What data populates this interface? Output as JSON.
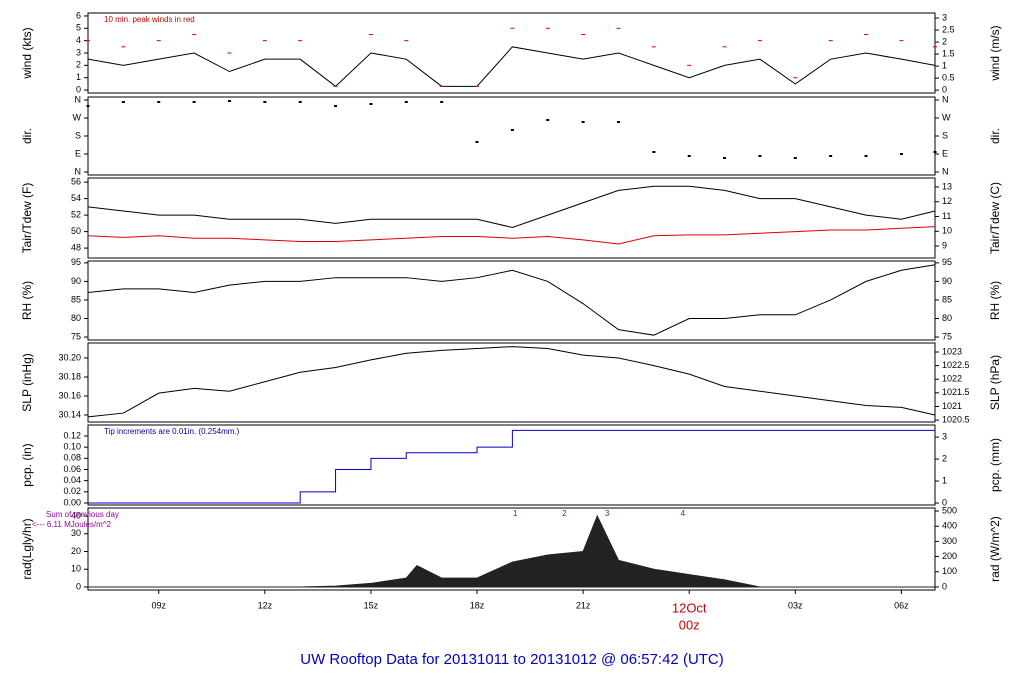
{
  "chart_data": [
    {
      "type": "line",
      "ylabel": "wind (kts)",
      "y2label": "wind (m/s)",
      "note": "10 min. peak winds in red",
      "note_color": "#cc0000",
      "xlim": [
        7,
        30.95
      ],
      "ylim": [
        -0.24,
        6.24
      ],
      "yticks": [
        0,
        1,
        2,
        3,
        4,
        5,
        6
      ],
      "y2lim": [
        -0.12,
        3.21
      ],
      "y2ticks": [
        0,
        0.5,
        1,
        1.5,
        2,
        2.5,
        3
      ],
      "x": [
        7,
        8,
        9,
        10,
        11,
        12,
        13,
        14,
        15,
        16,
        17,
        18,
        19,
        20,
        21,
        22,
        23,
        24,
        25,
        26,
        27,
        28,
        29,
        30,
        30.95
      ],
      "series": [
        {
          "color": "#000000",
          "values": [
            2.5,
            2,
            2.5,
            3,
            1.5,
            2.5,
            2.5,
            0.3,
            3,
            2.5,
            0.3,
            0.3,
            3.5,
            3,
            2.5,
            3,
            2,
            1,
            2,
            2.5,
            0.5,
            2.5,
            3,
            2.5,
            2
          ]
        },
        {
          "color": "#dd0000",
          "marker": "dash",
          "values": [
            4,
            3.5,
            4,
            4.5,
            3,
            4,
            4,
            0.3,
            4.5,
            4,
            0.3,
            0.3,
            5,
            5,
            4.5,
            5,
            3.5,
            2,
            3.5,
            4,
            1,
            4,
            4.5,
            4,
            3.5
          ]
        }
      ]
    },
    {
      "type": "scatter",
      "ylabel": "dir.",
      "y2label": "dir.",
      "xlim": [
        7,
        30.95
      ],
      "ylim": [
        -15,
        375
      ],
      "yticks": [
        {
          "value": 360,
          "label": "N"
        },
        {
          "value": 270,
          "label": "W"
        },
        {
          "value": 180,
          "label": "S"
        },
        {
          "value": 90,
          "label": "E"
        },
        {
          "value": 0,
          "label": "N"
        }
      ],
      "y2lim": [
        -15,
        375
      ],
      "y2ticks": [
        {
          "value": 360,
          "label": "N"
        },
        {
          "value": 270,
          "label": "W"
        },
        {
          "value": 180,
          "label": "S"
        },
        {
          "value": 90,
          "label": "E"
        },
        {
          "value": 0,
          "label": "N"
        }
      ],
      "x": [
        7,
        8,
        9,
        10,
        11,
        12,
        13,
        14,
        15,
        16,
        17,
        18,
        19,
        20,
        21,
        22,
        23,
        24,
        25,
        26,
        27,
        28,
        29,
        30,
        30.95
      ],
      "series": [
        {
          "color": "#000000",
          "values": [
            330,
            350,
            350,
            350,
            355,
            350,
            350,
            330,
            340,
            350,
            350,
            150,
            210,
            260,
            250,
            250,
            100,
            80,
            70,
            80,
            70,
            80,
            80,
            90,
            100
          ]
        }
      ]
    },
    {
      "type": "line",
      "ylabel": "Tair/Tdew (F)",
      "y2label": "Tair/Tdew (C)",
      "xlim": [
        7,
        30.95
      ],
      "ylim": [
        46.8,
        56.5
      ],
      "yticks": [
        48,
        50,
        52,
        54,
        56
      ],
      "y2lim": [
        8.19,
        13.61
      ],
      "y2ticks": [
        9,
        10,
        11,
        12,
        13
      ],
      "x": [
        7,
        8,
        9,
        10,
        11,
        12,
        13,
        14,
        15,
        16,
        17,
        18,
        19,
        20,
        21,
        22,
        23,
        24,
        25,
        26,
        27,
        28,
        29,
        30,
        30.95
      ],
      "series": [
        {
          "color": "#000000",
          "values": [
            53,
            52.5,
            52,
            52,
            51.5,
            51.5,
            51.5,
            51,
            51.5,
            51.5,
            51.5,
            51.5,
            50.5,
            52,
            53.5,
            55,
            55.5,
            55.5,
            55,
            54,
            54,
            53,
            52,
            51.5,
            52.5
          ]
        },
        {
          "color": "#dd0000",
          "values": [
            49.5,
            49.3,
            49.5,
            49.2,
            49.2,
            49,
            48.8,
            48.8,
            49,
            49.2,
            49.4,
            49.4,
            49.2,
            49.4,
            49,
            48.5,
            49.5,
            49.6,
            49.6,
            49.8,
            50,
            50.2,
            50.2,
            50.4,
            50.6
          ]
        }
      ]
    },
    {
      "type": "line",
      "ylabel": "RH (%)",
      "y2label": "RH (%)",
      "xlim": [
        7,
        30.95
      ],
      "ylim": [
        74.2,
        95.5
      ],
      "yticks": [
        75,
        80,
        85,
        90,
        95
      ],
      "y2lim": [
        74.2,
        95.5
      ],
      "y2ticks": [
        75,
        80,
        85,
        90,
        95
      ],
      "x": [
        7,
        8,
        9,
        10,
        11,
        12,
        13,
        14,
        15,
        16,
        17,
        18,
        19,
        20,
        21,
        22,
        23,
        24,
        25,
        26,
        27,
        28,
        29,
        30,
        30.95
      ],
      "series": [
        {
          "color": "#000000",
          "values": [
            87,
            88,
            88,
            87,
            89,
            90,
            90,
            91,
            91,
            91,
            90,
            91,
            93,
            90,
            84,
            77,
            75.5,
            80,
            80,
            81,
            81,
            85,
            90,
            93,
            94.5
          ]
        }
      ]
    },
    {
      "type": "line",
      "ylabel": "SLP (inHg)",
      "y2label": "SLP (hPa)",
      "xlim": [
        7,
        30.95
      ],
      "ylim": [
        30.1326,
        30.2158
      ],
      "yticks": [
        {
          "value": 30.14,
          "label": "30.14"
        },
        {
          "value": 30.16,
          "label": "30.16"
        },
        {
          "value": 30.18,
          "label": "30.18"
        },
        {
          "value": 30.2,
          "label": "30.20"
        }
      ],
      "y2lim": [
        1020.43,
        1023.33
      ],
      "y2ticks": [
        1020.5,
        1021,
        1021.5,
        1022,
        1022.5,
        1023
      ],
      "x": [
        7,
        8,
        9,
        10,
        11,
        12,
        13,
        14,
        15,
        16,
        17,
        18,
        19,
        20,
        21,
        22,
        23,
        24,
        25,
        26,
        27,
        28,
        29,
        30,
        30.95
      ],
      "series": [
        {
          "color": "#000000",
          "values": [
            30.138,
            30.142,
            30.163,
            30.168,
            30.165,
            30.175,
            30.185,
            30.19,
            30.198,
            30.205,
            30.208,
            30.21,
            30.212,
            30.21,
            30.203,
            30.2,
            30.192,
            30.183,
            30.17,
            30.165,
            30.16,
            30.155,
            30.15,
            30.148,
            30.14
          ]
        }
      ]
    },
    {
      "type": "step",
      "ylabel": "pcp. (in)",
      "y2label": "pcp. (mm)",
      "note": "Tip increments are 0.01in. (0.254mm.)",
      "note_color": "#0000aa",
      "xlim": [
        7,
        30.95
      ],
      "ylim": [
        -0.0036,
        0.1397
      ],
      "yticks": [
        {
          "value": 0,
          "label": "0.00"
        },
        {
          "value": 0.02,
          "label": "0.02"
        },
        {
          "value": 0.04,
          "label": "0.04"
        },
        {
          "value": 0.06,
          "label": "0.06"
        },
        {
          "value": 0.08,
          "label": "0.08"
        },
        {
          "value": 0.1,
          "label": "0.10"
        },
        {
          "value": 0.12,
          "label": "0.12"
        }
      ],
      "y2lim": [
        -0.09,
        3.55
      ],
      "y2ticks": [
        0,
        1,
        2,
        3
      ],
      "x": [
        7,
        8,
        9,
        10,
        11,
        12,
        13,
        14,
        15,
        16,
        17,
        18,
        19,
        20,
        21,
        22,
        23,
        24,
        25,
        26,
        27,
        28,
        29,
        30,
        30.95
      ],
      "series": [
        {
          "color": "#0000cc",
          "values": [
            0,
            0,
            0,
            0,
            0,
            0,
            0.02,
            0.06,
            0.08,
            0.09,
            0.09,
            0.1,
            0.13,
            0.13,
            0.13,
            0.13,
            0.13,
            0.13,
            0.13,
            0.13,
            0.13,
            0.13,
            0.13,
            0.13,
            0.13
          ]
        }
      ]
    },
    {
      "type": "area",
      "ylabel": "rad(Lgly/hr)",
      "y2label": "rad (W/m^2)",
      "side_notes": [
        "Sum of previous day",
        "<--- 6.11 MJoules/m^2"
      ],
      "note_color": "#9900aa",
      "markers": [
        {
          "label": "1",
          "x": 19.08
        },
        {
          "label": "2",
          "x": 20.47
        },
        {
          "label": "3",
          "x": 21.68
        },
        {
          "label": "4",
          "x": 23.82
        }
      ],
      "xlim": [
        7,
        30.95
      ],
      "ylim": [
        -1.7,
        44.5
      ],
      "yticks": [
        0,
        10,
        20,
        30,
        40
      ],
      "y2lim": [
        -20,
        520
      ],
      "y2ticks": [
        0,
        100,
        200,
        300,
        400,
        500
      ],
      "x": [
        7,
        13,
        14,
        15,
        16,
        16.3,
        17,
        18,
        19,
        20,
        21,
        21.4,
        22,
        23,
        24,
        25,
        26,
        30.95
      ],
      "series": [
        {
          "color": "#222222",
          "values": [
            0,
            0,
            0.5,
            2,
            5,
            12,
            5,
            5,
            14,
            18,
            20,
            40,
            15,
            10,
            7,
            4,
            0,
            0
          ]
        }
      ],
      "xticks": [
        {
          "value": 9,
          "label": "09z"
        },
        {
          "value": 12,
          "label": "12z"
        },
        {
          "value": 15,
          "label": "15z"
        },
        {
          "value": 18,
          "label": "18z"
        },
        {
          "value": 21,
          "label": "21z"
        },
        {
          "value": 24,
          "label": "00z",
          "color": "#cc0000"
        },
        {
          "value": 27,
          "label": "03z"
        },
        {
          "value": 30,
          "label": "06z"
        }
      ],
      "date_label": "12Oct"
    }
  ],
  "title": "UW Rooftop Data for 20131011  to  20131012 @ 06:57:42  (UTC)"
}
